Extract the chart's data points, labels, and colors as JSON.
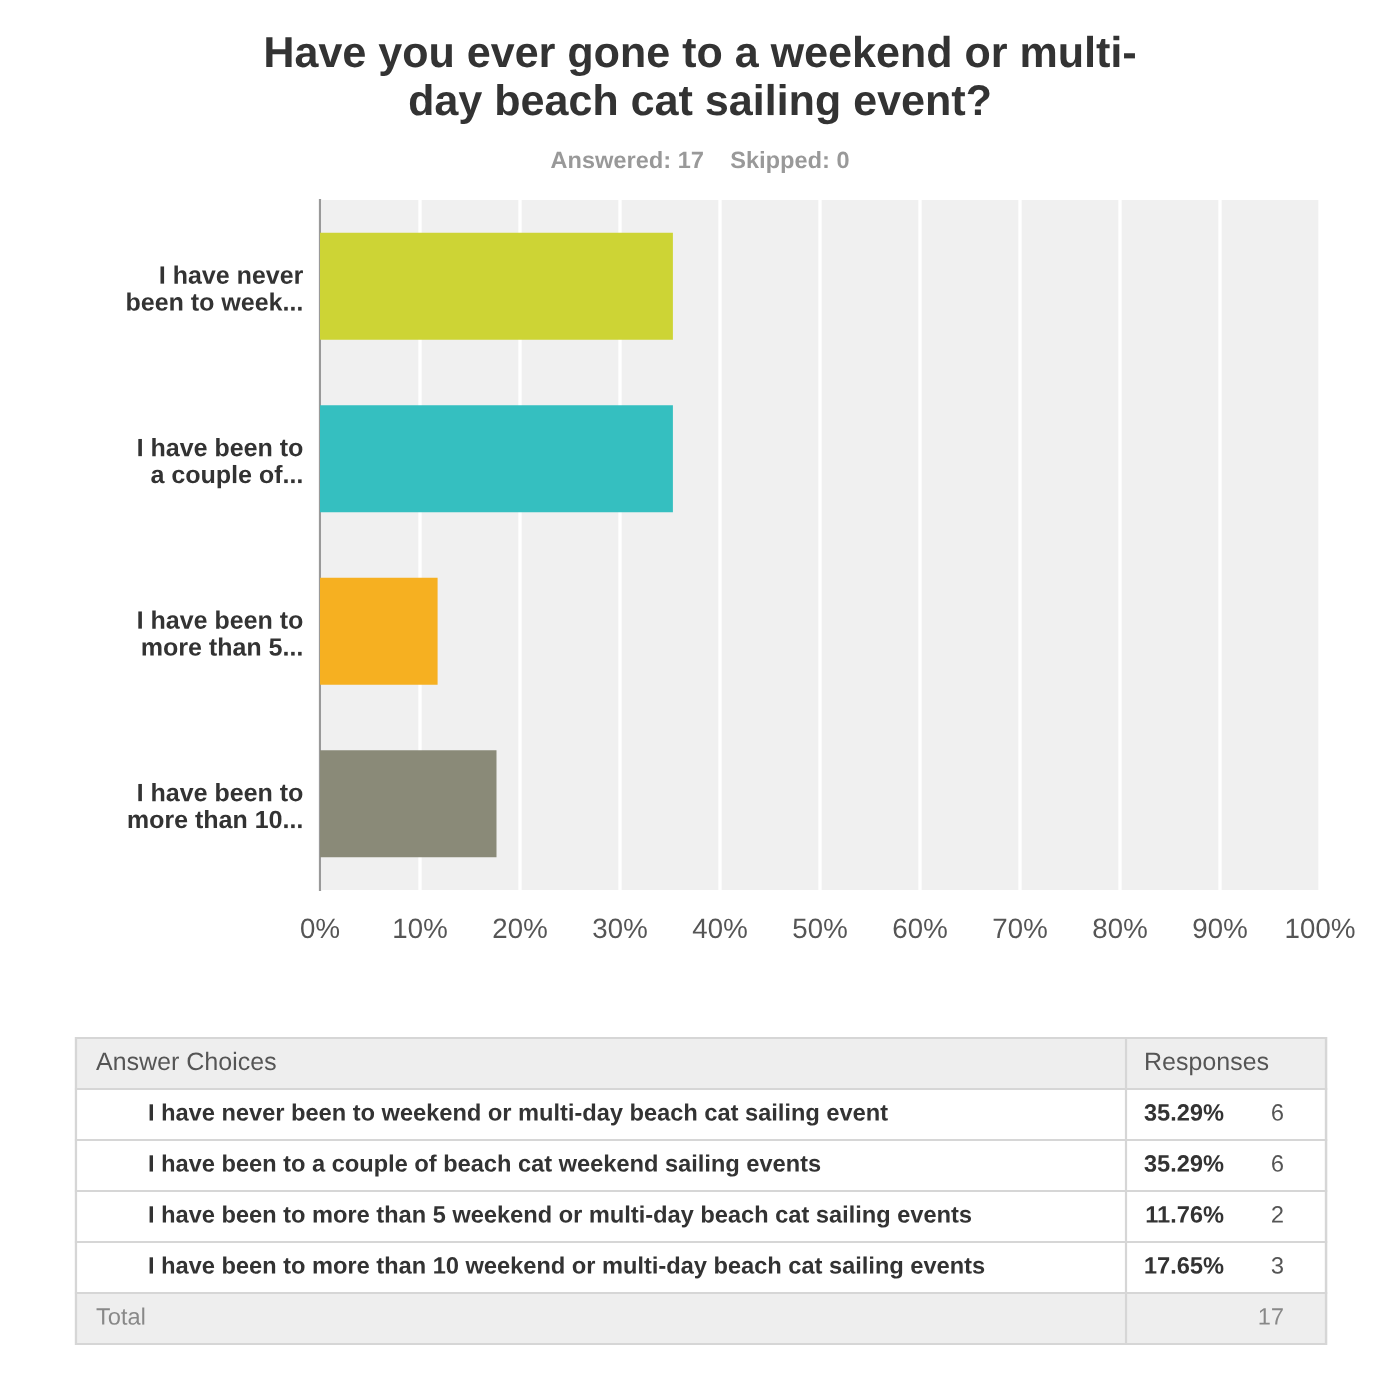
{
  "chart_data": {
    "type": "bar",
    "orientation": "horizontal",
    "title": "Have you ever gone to a weekend or multi-\nday beach cat sailing event?",
    "subtitle": "Answered: 17    Skipped: 0",
    "categories": [
      "I have never\nbeen to week...",
      "I have been to\na couple of...",
      "I have been to\nmore than 5...",
      "I have been to\nmore than 10..."
    ],
    "values": [
      35.29,
      35.29,
      11.76,
      17.65
    ],
    "colors": [
      "#cdd435",
      "#35bfc0",
      "#f6b021",
      "#8a8a78"
    ],
    "xlim": [
      0,
      100
    ],
    "xticks": [
      {
        "value": 0,
        "label": "0%"
      },
      {
        "value": 10,
        "label": "10%"
      },
      {
        "value": 20,
        "label": "20%"
      },
      {
        "value": 30,
        "label": "30%"
      },
      {
        "value": 40,
        "label": "40%"
      },
      {
        "value": 50,
        "label": "50%"
      },
      {
        "value": 60,
        "label": "60%"
      },
      {
        "value": 70,
        "label": "70%"
      },
      {
        "value": 80,
        "label": "80%"
      },
      {
        "value": 90,
        "label": "90%"
      },
      {
        "value": 100,
        "label": "100%"
      }
    ],
    "grid": "x",
    "annotations": [
      "Answer Choices",
      "Responses",
      "I have never been to weekend or multi-day beach cat sailing event",
      "35.29%",
      "6",
      "I have been to a couple of beach cat weekend sailing events",
      "35.29%",
      "6",
      "I have been to more than 5 weekend or multi-day beach cat sailing events",
      "11.76%",
      "2",
      "I have been to more than 10 weekend or multi-day beach cat sailing events",
      "17.65%",
      "3",
      "Total",
      "17"
    ]
  }
}
